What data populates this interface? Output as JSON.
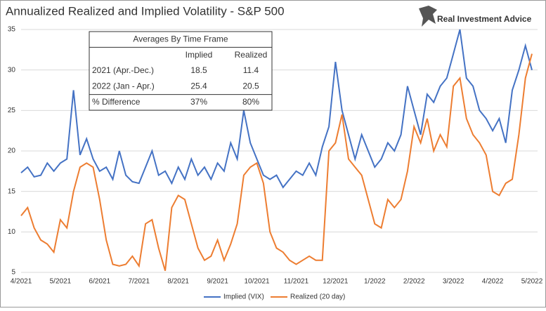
{
  "chart_data": {
    "type": "line",
    "title": "Annualized Realized and Implied Volatility - S&P 500",
    "brand": "Real Investment Advice",
    "categories": [
      "4/2021",
      null,
      null,
      null,
      null,
      null,
      "5/2021",
      null,
      null,
      null,
      null,
      null,
      "6/2021",
      null,
      null,
      null,
      null,
      null,
      "7/2021",
      null,
      null,
      null,
      null,
      null,
      "8/2021",
      null,
      null,
      null,
      null,
      null,
      "9/2021",
      null,
      null,
      null,
      null,
      null,
      "10/2021",
      null,
      null,
      null,
      null,
      null,
      "11/2021",
      null,
      null,
      null,
      null,
      null,
      "12/2021",
      null,
      null,
      null,
      null,
      null,
      "1/2022",
      null,
      null,
      null,
      null,
      null,
      "2/2022",
      null,
      null,
      null,
      null,
      null,
      "3/2022",
      null,
      null,
      null,
      null,
      null,
      "4/2022",
      null,
      null,
      null,
      null,
      null,
      "5/2022"
    ],
    "series": [
      {
        "name": "Implied (VIX)",
        "color": "#4472c4",
        "values": [
          17.3,
          18,
          16.8,
          17,
          18.5,
          17.5,
          18.5,
          19,
          27.5,
          19.5,
          21.5,
          19,
          17.5,
          18,
          16.5,
          20,
          17,
          16.2,
          16,
          18,
          20,
          17,
          17.5,
          16,
          18,
          16.5,
          19,
          17,
          18,
          16.5,
          18.5,
          17.5,
          21,
          19,
          25,
          21,
          19,
          17,
          16.5,
          17,
          15.5,
          16.5,
          17.5,
          17,
          18.5,
          17,
          20.5,
          23,
          31,
          25,
          22,
          19,
          22,
          20,
          18,
          19,
          21,
          20,
          22,
          28,
          25,
          22,
          27,
          26,
          28,
          29,
          32,
          35,
          29,
          28,
          25,
          24,
          22.5,
          24,
          21,
          27.5,
          30,
          33,
          30
        ]
      },
      {
        "name": "Realized (20 day)",
        "color": "#ed7d31",
        "values": [
          12,
          13,
          10.5,
          9,
          8.5,
          7.5,
          11.5,
          10.5,
          15,
          18,
          18.5,
          18,
          14,
          9,
          6,
          5.8,
          6,
          7,
          5.8,
          11,
          11.5,
          8,
          5.2,
          13,
          14.5,
          14,
          11,
          8,
          6.5,
          7,
          9,
          6.5,
          8.5,
          11,
          17,
          18,
          18.5,
          16,
          10,
          8,
          7.5,
          6.5,
          6,
          6.5,
          7,
          6.5,
          6.5,
          20,
          21,
          24.5,
          19,
          18,
          17,
          14,
          11,
          10.5,
          14,
          13,
          14,
          17.5,
          23,
          21,
          24,
          20,
          22,
          20.5,
          28,
          29,
          24,
          22,
          21,
          19.5,
          15,
          14.5,
          16,
          16.5,
          22,
          29,
          32
        ]
      }
    ],
    "ylim": [
      5,
      35
    ],
    "yticks": [
      5,
      10,
      15,
      20,
      25,
      30,
      35
    ],
    "grid": true,
    "table": {
      "title": "Averages By Time Frame",
      "columns": [
        "Implied",
        "Realized"
      ],
      "rows": [
        [
          "2021 (Apr.-Dec.)",
          "18.5",
          "11.4"
        ],
        [
          "2022 (Jan - Apr.)",
          "25.4",
          "20.5"
        ],
        [
          "% Difference",
          "37%",
          "80%"
        ]
      ]
    }
  }
}
